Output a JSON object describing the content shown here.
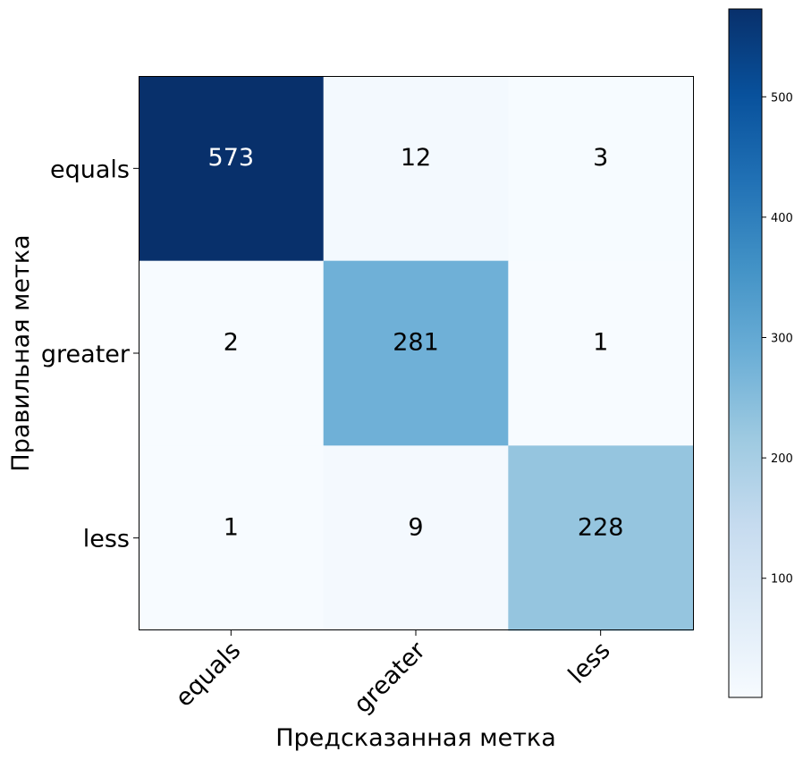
{
  "chart_data": {
    "type": "heatmap",
    "title": "",
    "xlabel": "Предсказанная метка",
    "ylabel": "Правильная метка",
    "x_categories": [
      "equals",
      "greater",
      "less"
    ],
    "y_categories": [
      "equals",
      "greater",
      "less"
    ],
    "values": [
      [
        573,
        12,
        3
      ],
      [
        2,
        281,
        1
      ],
      [
        1,
        9,
        228
      ]
    ],
    "colormap": "Blues",
    "colorbar": {
      "range": [
        1,
        573
      ],
      "ticks": [
        100,
        200,
        300,
        400,
        500
      ],
      "tick_labels": [
        "100",
        "200",
        "300",
        "400",
        "500"
      ]
    },
    "x_tick_rotation_deg": 45,
    "grid": false,
    "legend": "colorbar-right"
  },
  "colors": {
    "text_dark": "#000000",
    "text_light": "#ffffff",
    "frame": "#000000"
  }
}
